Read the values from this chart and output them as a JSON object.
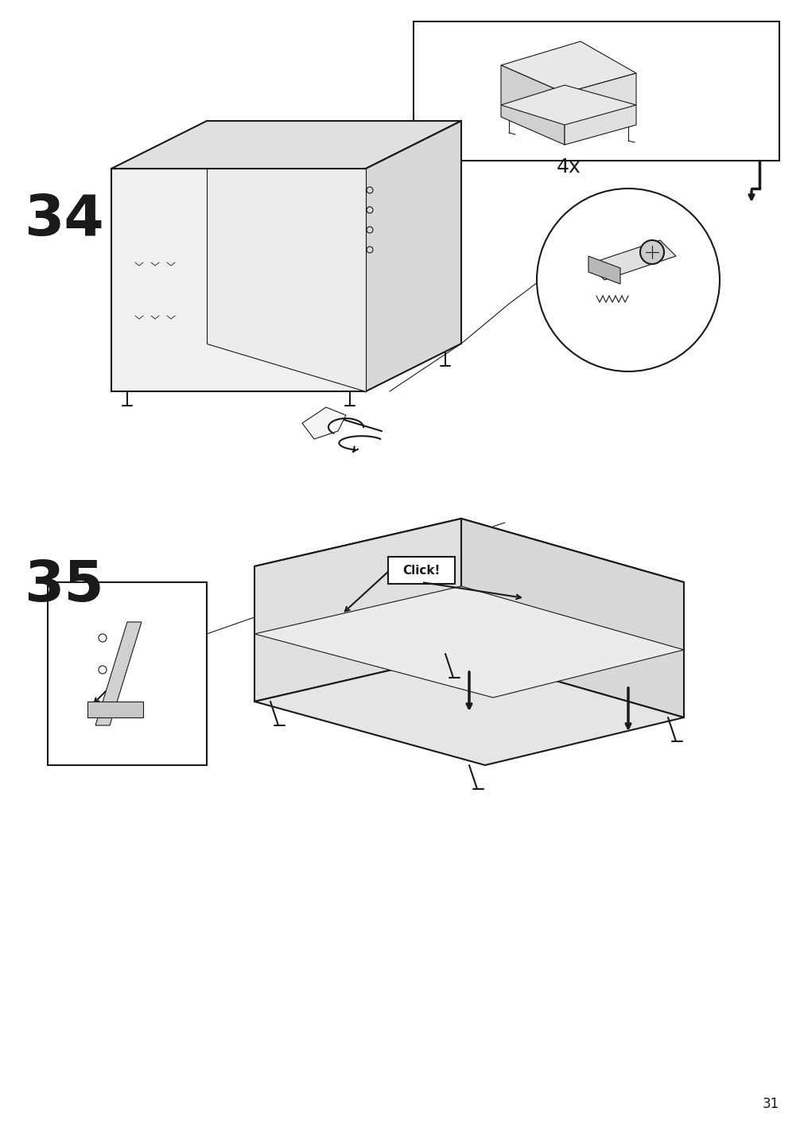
{
  "page_number": "31",
  "background_color": "#ffffff",
  "line_color": "#1a1a1a",
  "step34_label": "34",
  "step35_label": "35",
  "multiplier_label": "4x",
  "click_label": "Click!",
  "fig_width": 10.12,
  "fig_height": 14.32,
  "dpi": 100
}
